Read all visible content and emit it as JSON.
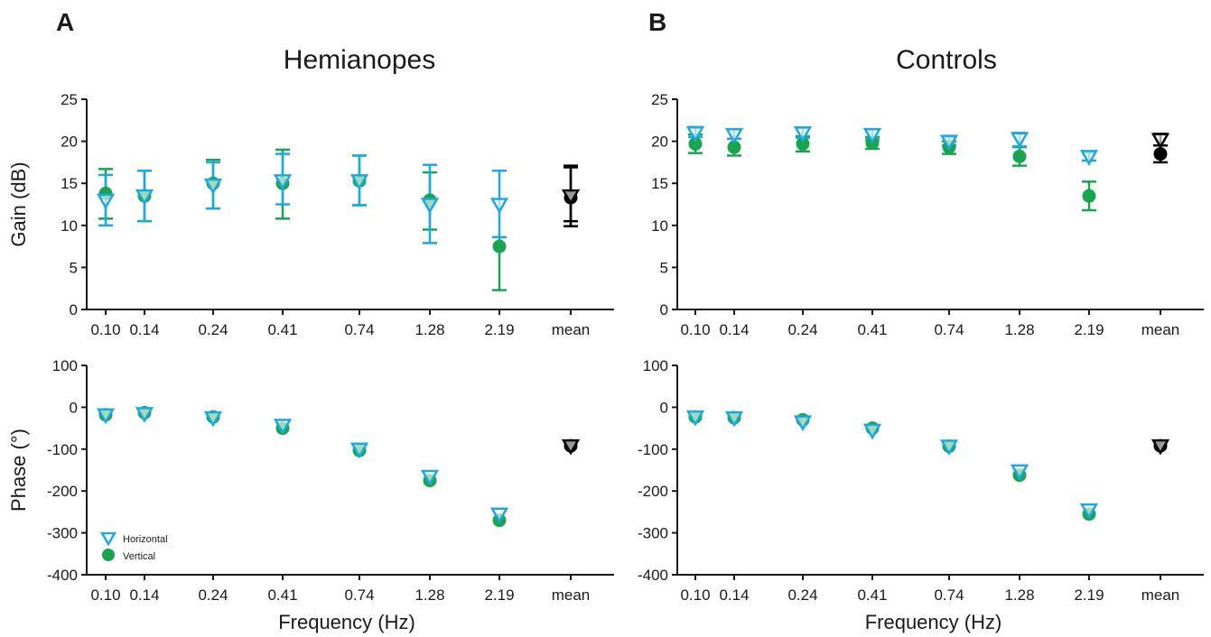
{
  "figure": {
    "panel_letters": [
      "A",
      "B"
    ],
    "group_titles": [
      "Hemianopes",
      "Controls"
    ],
    "legend": {
      "horizontal": "Horizontal",
      "vertical": "Vertical"
    },
    "colors": {
      "horizontal": "#1ea8e0",
      "vertical": "#19a550",
      "mean": "#000000",
      "axis": "#1a1a1a"
    }
  },
  "chart_data": [
    {
      "type": "scatter",
      "title": "Hemianopes",
      "panel": "A",
      "ylabel": "Gain (dB)",
      "xlabel": "",
      "categories": [
        "0.10",
        "0.14",
        "0.24",
        "0.41",
        "0.74",
        "1.28",
        "2.19",
        "mean"
      ],
      "ylim": [
        0,
        25
      ],
      "yticks": [
        0,
        5,
        10,
        15,
        20,
        25
      ],
      "grid": false,
      "series": [
        {
          "name": "Horizontal",
          "marker": "triangle-down",
          "values": [
            13.0,
            13.5,
            14.8,
            15.3,
            15.3,
            12.5,
            12.5,
            13.5
          ],
          "err_low": [
            10.0,
            10.5,
            12.0,
            12.5,
            12.4,
            7.9,
            8.6,
            10.5
          ],
          "err_high": [
            16.0,
            16.5,
            17.5,
            18.5,
            18.3,
            17.2,
            16.5,
            16.9
          ]
        },
        {
          "name": "Vertical",
          "marker": "circle",
          "values": [
            13.8,
            13.5,
            15.0,
            15.0,
            15.3,
            13.0,
            7.5,
            13.3
          ],
          "err_low": [
            10.8,
            10.5,
            12.0,
            10.8,
            12.4,
            9.5,
            2.3,
            9.9
          ],
          "err_high": [
            16.7,
            16.5,
            17.8,
            19.0,
            18.3,
            16.3,
            8.6,
            17.1
          ]
        }
      ]
    },
    {
      "type": "scatter",
      "title": "Hemianopes",
      "panel": "A",
      "ylabel": "Phase (°)",
      "xlabel": "Frequency (Hz)",
      "categories": [
        "0.10",
        "0.14",
        "0.24",
        "0.41",
        "0.74",
        "1.28",
        "2.19",
        "mean"
      ],
      "ylim": [
        -400,
        100
      ],
      "yticks": [
        -400,
        -300,
        -200,
        -100,
        0,
        100
      ],
      "grid": false,
      "legend_position": "bottom-left",
      "series": [
        {
          "name": "Horizontal",
          "marker": "triangle-down",
          "values": [
            -18,
            -15,
            -25,
            -43,
            -100,
            -165,
            -255,
            -92
          ]
        },
        {
          "name": "Vertical",
          "marker": "circle",
          "values": [
            -18,
            -13,
            -23,
            -50,
            -103,
            -175,
            -270,
            -92
          ]
        }
      ]
    },
    {
      "type": "scatter",
      "title": "Controls",
      "panel": "B",
      "ylabel": "",
      "xlabel": "",
      "categories": [
        "0.10",
        "0.14",
        "0.24",
        "0.41",
        "0.74",
        "1.28",
        "2.19",
        "mean"
      ],
      "ylim": [
        0,
        25
      ],
      "yticks": [
        0,
        5,
        10,
        15,
        20,
        25
      ],
      "grid": false,
      "series": [
        {
          "name": "Horizontal",
          "marker": "triangle-down",
          "values": [
            21.0,
            20.8,
            21.0,
            20.8,
            20.0,
            20.3,
            18.2,
            20.2
          ],
          "err_low": [
            20.5,
            20.3,
            20.4,
            20.2,
            19.5,
            19.4,
            17.7,
            19.5
          ],
          "err_high": [
            21.7,
            21.4,
            21.6,
            21.4,
            20.5,
            21.0,
            18.7,
            20.9
          ]
        },
        {
          "name": "Vertical",
          "marker": "circle",
          "values": [
            19.7,
            19.3,
            19.7,
            19.8,
            19.3,
            18.2,
            13.5,
            18.5
          ],
          "err_low": [
            18.6,
            18.3,
            18.8,
            19.1,
            18.5,
            17.1,
            11.8,
            17.5
          ],
          "err_high": [
            20.8,
            20.3,
            20.6,
            20.5,
            20.0,
            19.3,
            15.2,
            19.5
          ]
        }
      ]
    },
    {
      "type": "scatter",
      "title": "Controls",
      "panel": "B",
      "ylabel": "",
      "xlabel": "Frequency (Hz)",
      "categories": [
        "0.10",
        "0.14",
        "0.24",
        "0.41",
        "0.74",
        "1.28",
        "2.19",
        "mean"
      ],
      "ylim": [
        -400,
        100
      ],
      "yticks": [
        -400,
        -300,
        -200,
        -100,
        0,
        100
      ],
      "grid": false,
      "series": [
        {
          "name": "Horizontal",
          "marker": "triangle-down",
          "values": [
            -23,
            -25,
            -35,
            -55,
            -93,
            -152,
            -245,
            -92
          ]
        },
        {
          "name": "Vertical",
          "marker": "circle",
          "values": [
            -23,
            -25,
            -30,
            -50,
            -93,
            -162,
            -255,
            -92
          ]
        }
      ]
    }
  ]
}
